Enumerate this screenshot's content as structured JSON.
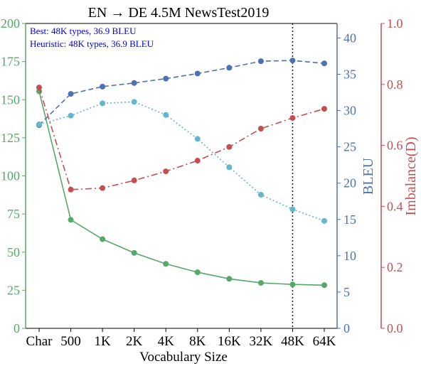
{
  "chart_data": {
    "type": "line",
    "title": "EN → DE 4.5M NewsTest2019",
    "xlabel": "Vocabulary Size",
    "categories": [
      "Char",
      "500",
      "1K",
      "2K",
      "4K",
      "8K",
      "16K",
      "32K",
      "48K",
      "64K"
    ],
    "annotations": [
      "Best: 48K types, 36.9 BLEU",
      "Heuristic: 48K types, 36.9 BLEU"
    ],
    "best_marker_category": "48K",
    "axes": {
      "left": {
        "label": "",
        "ylim": [
          0,
          200
        ],
        "ticks": [
          0,
          25,
          50,
          75,
          100,
          125,
          150,
          175,
          200
        ],
        "color": "#55a868"
      },
      "right_inner": {
        "label": "BLEU",
        "ylim": [
          0,
          42
        ],
        "ticks": [
          0,
          5,
          10,
          15,
          20,
          25,
          30,
          35,
          40
        ],
        "color": "#4c72b0"
      },
      "right_outer": {
        "label": "Imbalance(D)",
        "ylim": [
          0.0,
          1.0
        ],
        "ticks": [
          0.0,
          0.2,
          0.4,
          0.6,
          0.8,
          1.0
        ],
        "tick_labels": [
          "0.0",
          "0.2",
          "0.4",
          "0.6",
          "0.8",
          "1.0"
        ],
        "color": "#c44e52"
      }
    },
    "series": [
      {
        "axis": "left",
        "style": "solid",
        "color": "#55a868",
        "values": [
          155.5,
          71.2,
          58.5,
          49.5,
          42.3,
          36.8,
          32.5,
          29.8,
          28.8,
          28.3
        ]
      },
      {
        "axis": "right_inner",
        "style": "dashed",
        "color": "#4c72b0",
        "values": [
          28.0,
          32.3,
          33.3,
          33.8,
          34.4,
          35.1,
          35.9,
          36.8,
          36.9,
          36.5
        ]
      },
      {
        "axis": "right_outer",
        "style": "dashdot",
        "color": "#c44e52",
        "values": [
          0.79,
          0.455,
          0.46,
          0.485,
          0.515,
          0.55,
          0.595,
          0.655,
          0.69,
          0.72
        ]
      },
      {
        "axis": "right_inner",
        "style": "dotted",
        "color": "#64b5cd",
        "values": [
          28.1,
          29.3,
          31.0,
          31.2,
          29.4,
          26.1,
          22.2,
          18.4,
          16.4,
          14.8
        ]
      }
    ],
    "grid": false,
    "legend": "none"
  }
}
